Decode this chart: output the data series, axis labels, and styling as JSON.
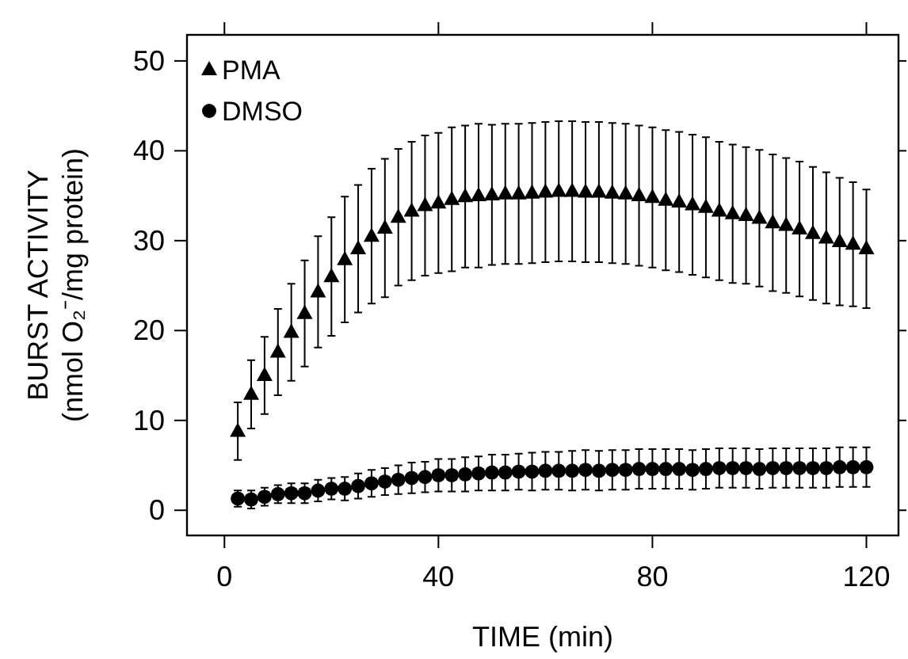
{
  "chart_data": {
    "type": "scatter",
    "xlabel": "TIME (min)",
    "ylabel": "BURST ACTIVITY\n(nmol O₂⁻/mg protein)",
    "x": [
      2.5,
      5,
      7.5,
      10,
      12.5,
      15,
      17.5,
      20,
      22.5,
      25,
      27.5,
      30,
      32.5,
      35,
      37.5,
      40,
      42.5,
      45,
      47.5,
      50,
      52.5,
      55,
      57.5,
      60,
      62.5,
      65,
      67.5,
      70,
      72.5,
      75,
      77.5,
      80,
      82.5,
      85,
      87.5,
      90,
      92.5,
      95,
      97.5,
      100,
      102.5,
      105,
      107.5,
      110,
      112.5,
      115,
      117.5,
      120
    ],
    "series": [
      {
        "name": "PMA",
        "color": "#000000",
        "marker": "triangle",
        "values": [
          8.8,
          12.9,
          15.0,
          17.6,
          19.8,
          21.9,
          24.3,
          26.0,
          27.9,
          29.1,
          30.5,
          31.4,
          32.6,
          33.3,
          33.9,
          34.2,
          34.6,
          34.9,
          35.0,
          35.1,
          35.2,
          35.2,
          35.3,
          35.4,
          35.5,
          35.5,
          35.4,
          35.4,
          35.3,
          35.2,
          35.0,
          34.8,
          34.5,
          34.3,
          34.0,
          33.7,
          33.3,
          33.0,
          32.8,
          32.5,
          32.0,
          31.7,
          31.3,
          30.8,
          30.3,
          29.9,
          29.6,
          29.1
        ],
        "errors": [
          3.2,
          3.8,
          4.3,
          4.8,
          5.4,
          5.9,
          6.2,
          6.6,
          7.0,
          7.1,
          7.5,
          7.7,
          7.6,
          7.7,
          7.8,
          7.8,
          8.0,
          7.9,
          8.0,
          7.8,
          7.8,
          7.8,
          7.8,
          7.8,
          7.8,
          7.8,
          7.8,
          7.8,
          7.8,
          7.8,
          7.8,
          7.8,
          7.8,
          7.8,
          7.8,
          7.8,
          7.7,
          7.7,
          7.6,
          7.6,
          7.6,
          7.5,
          7.5,
          7.4,
          7.3,
          7.1,
          6.9,
          6.6
        ]
      },
      {
        "name": "DMSO",
        "color": "#000000",
        "marker": "circle",
        "values": [
          1.3,
          1.2,
          1.5,
          1.8,
          1.9,
          1.9,
          2.2,
          2.4,
          2.4,
          2.7,
          3.0,
          3.2,
          3.4,
          3.6,
          3.7,
          3.9,
          3.9,
          4.0,
          4.1,
          4.2,
          4.2,
          4.3,
          4.3,
          4.4,
          4.4,
          4.4,
          4.5,
          4.4,
          4.5,
          4.5,
          4.6,
          4.6,
          4.6,
          4.6,
          4.5,
          4.6,
          4.7,
          4.7,
          4.7,
          4.6,
          4.7,
          4.7,
          4.7,
          4.7,
          4.7,
          4.8,
          4.8,
          4.8
        ],
        "errors": [
          0.9,
          1.0,
          1.0,
          1.0,
          1.1,
          1.1,
          1.2,
          1.2,
          1.3,
          1.4,
          1.5,
          1.5,
          1.6,
          1.7,
          1.7,
          1.8,
          1.8,
          1.9,
          1.9,
          2.0,
          2.0,
          2.0,
          2.1,
          2.1,
          2.1,
          2.2,
          2.2,
          2.2,
          2.2,
          2.2,
          2.2,
          2.2,
          2.2,
          2.2,
          2.2,
          2.2,
          2.2,
          2.2,
          2.2,
          2.2,
          2.2,
          2.2,
          2.2,
          2.2,
          2.2,
          2.2,
          2.2,
          2.2
        ]
      }
    ],
    "xlim": [
      -7,
      126
    ],
    "xticks": [
      0,
      40,
      80,
      120
    ],
    "ylim": [
      -2.8,
      52.9
    ],
    "yticks": [
      0,
      10,
      20,
      30,
      40,
      50
    ],
    "grid": false,
    "legend": "top left"
  }
}
